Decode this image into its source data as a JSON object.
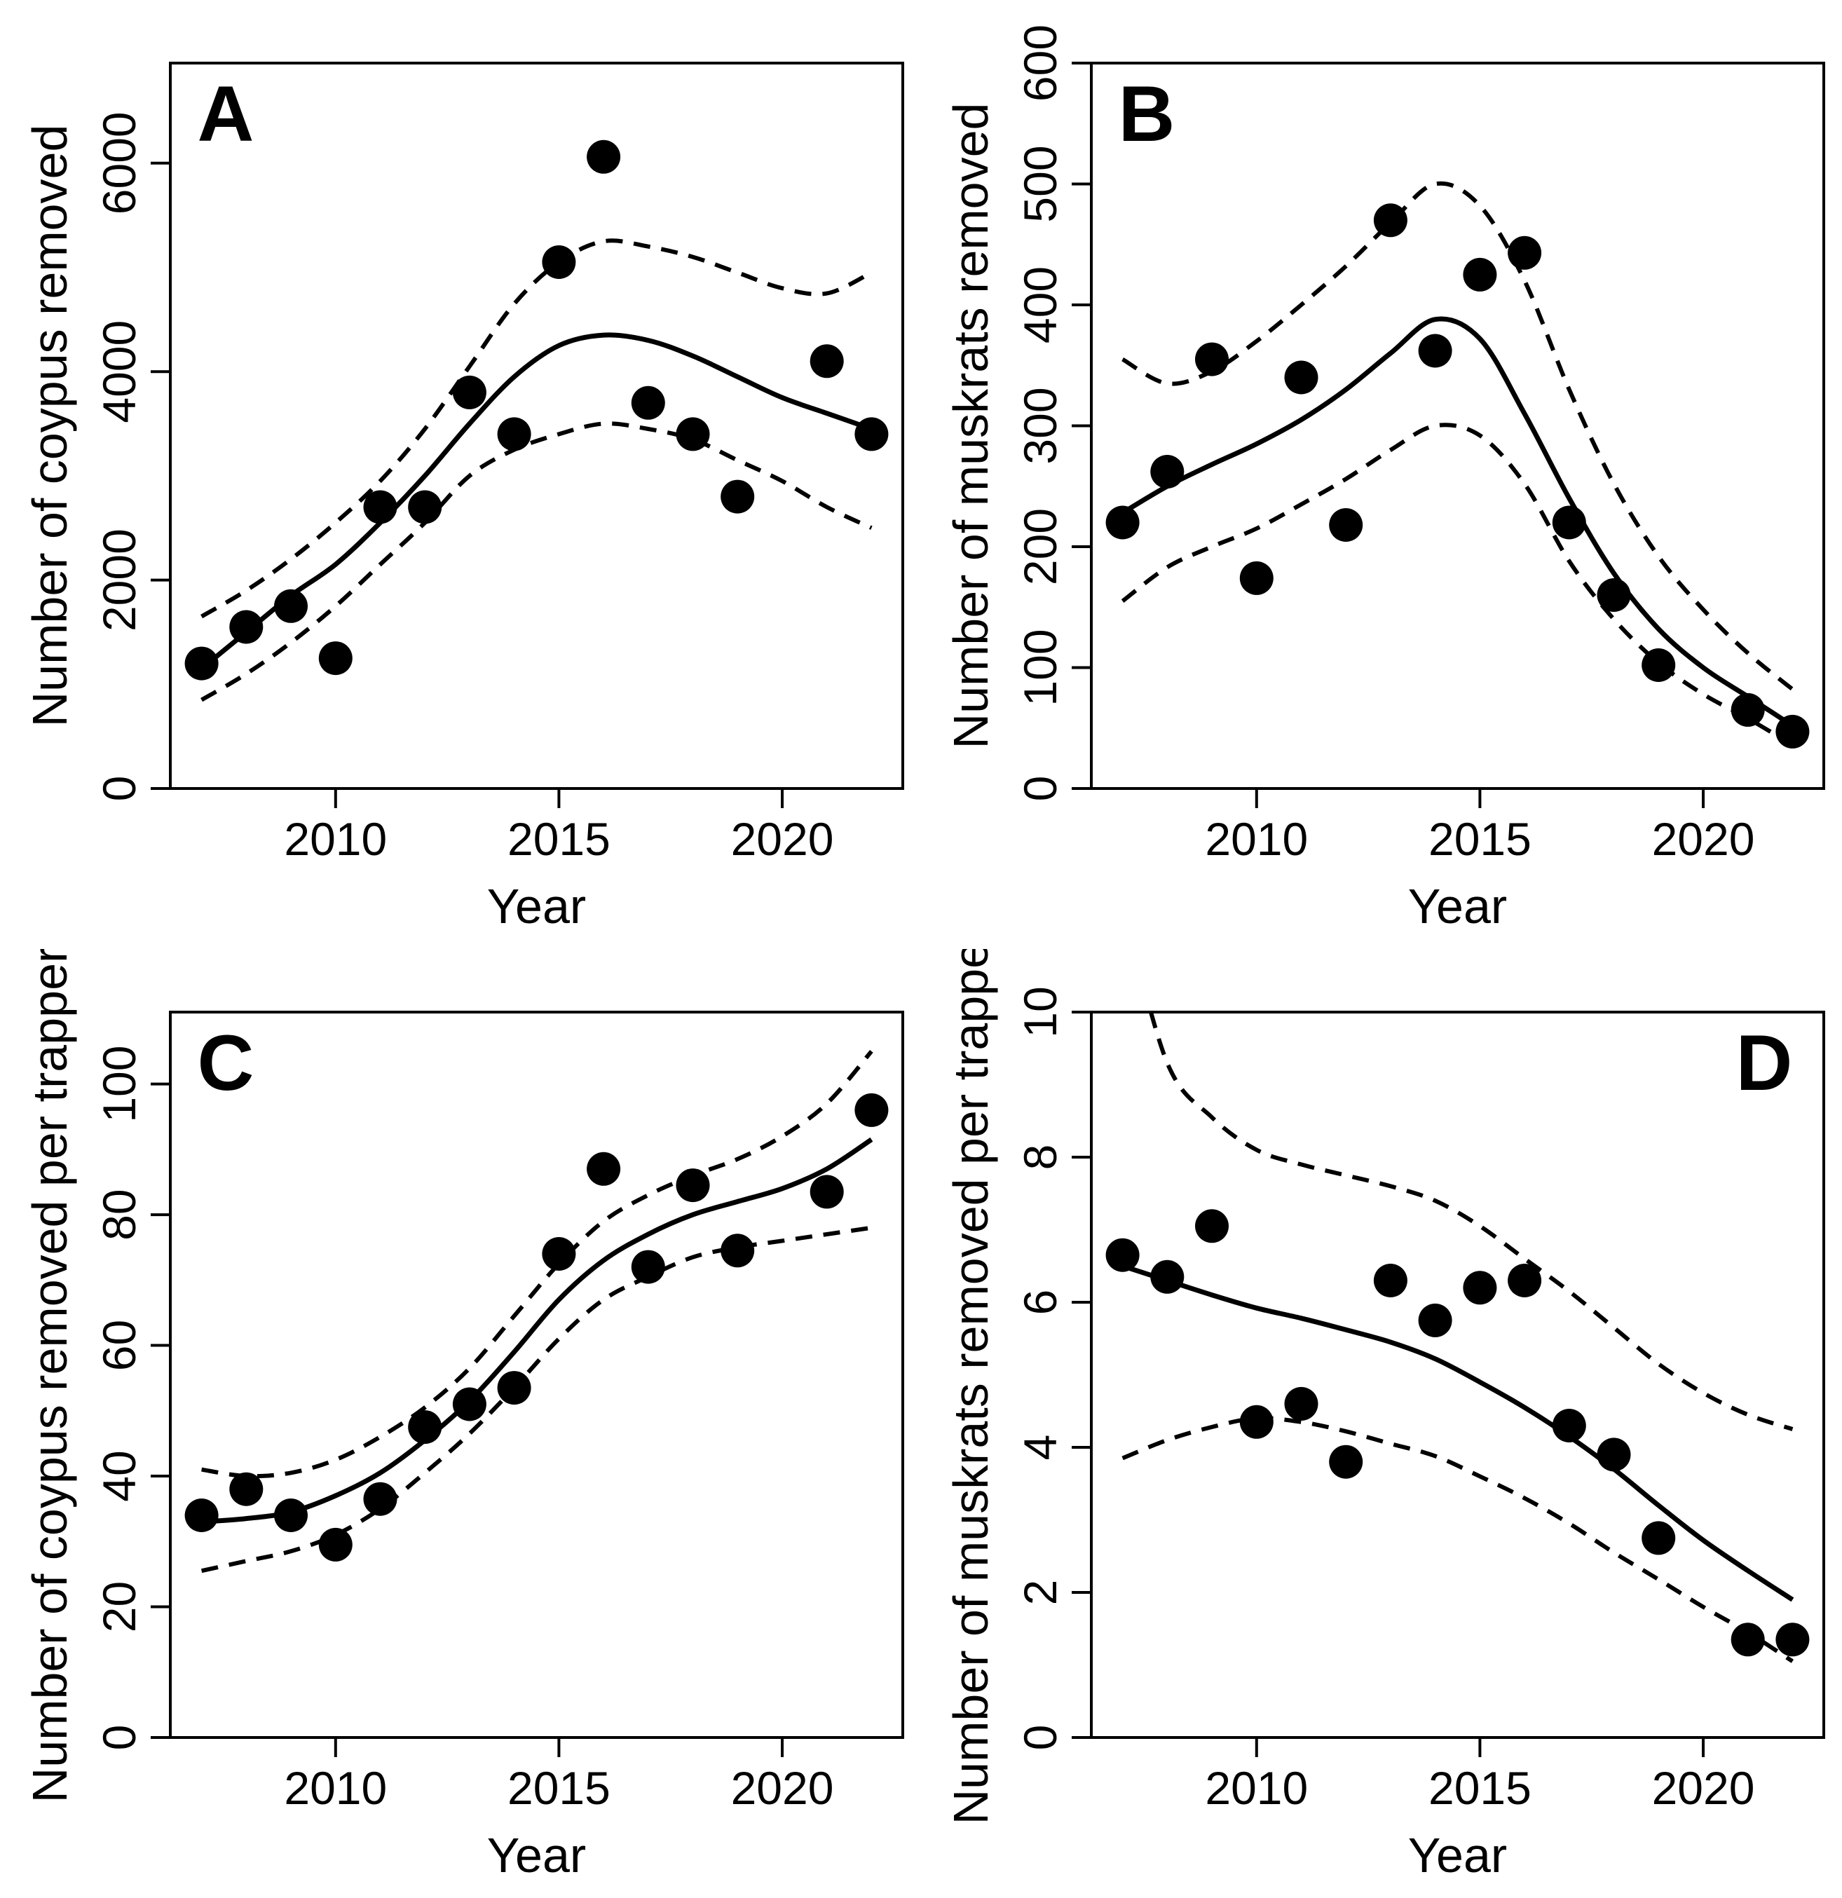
{
  "figure": {
    "background": "#ffffff",
    "foreground": "#000000",
    "panel_count": 4,
    "layout": "2x2",
    "point_years_note": "annual data 2007-2022, year 2020 missing",
    "xlabel": "Year"
  },
  "chart_data": [
    {
      "type": "scatter",
      "panel_label": "A",
      "label_corner": "top-left",
      "xlabel": "Year",
      "ylabel": "Number of coypus removed",
      "xlim": [
        2006.3,
        2022.7
      ],
      "ylim": [
        0,
        6960
      ],
      "xticks": [
        2010,
        2015,
        2020
      ],
      "yticks": [
        0,
        2000,
        4000,
        6000
      ],
      "grid": false,
      "legend": "none",
      "points": {
        "x": [
          2007,
          2008,
          2009,
          2010,
          2011,
          2012,
          2013,
          2014,
          2015,
          2016,
          2017,
          2018,
          2019,
          2021,
          2022
        ],
        "y": [
          1200,
          1550,
          1750,
          1250,
          2700,
          2700,
          3800,
          3400,
          5050,
          6060,
          3700,
          3400,
          2800,
          4100,
          3400
        ]
      },
      "fit_line": {
        "x": [
          2007,
          2008,
          2009,
          2010,
          2011,
          2012,
          2013,
          2014,
          2015,
          2016,
          2017,
          2018,
          2019,
          2020,
          2021,
          2022
        ],
        "y": [
          1150,
          1500,
          1850,
          2150,
          2550,
          3000,
          3500,
          3950,
          4250,
          4350,
          4300,
          4150,
          3950,
          3750,
          3600,
          3450
        ]
      },
      "ci_upper": {
        "x": [
          2007,
          2008,
          2009,
          2010,
          2011,
          2012,
          2013,
          2014,
          2015,
          2016,
          2017,
          2018,
          2019,
          2020,
          2021,
          2022
        ],
        "y": [
          1650,
          1900,
          2200,
          2550,
          2950,
          3450,
          4050,
          4650,
          5050,
          5250,
          5200,
          5100,
          4950,
          4800,
          4750,
          4950
        ]
      },
      "ci_lower": {
        "x": [
          2007,
          2008,
          2009,
          2010,
          2011,
          2012,
          2013,
          2014,
          2015,
          2016,
          2017,
          2018,
          2019,
          2020,
          2021,
          2022
        ],
        "y": [
          850,
          1100,
          1400,
          1750,
          2150,
          2550,
          3000,
          3250,
          3400,
          3500,
          3450,
          3350,
          3150,
          2950,
          2700,
          2500
        ]
      }
    },
    {
      "type": "scatter",
      "panel_label": "B",
      "label_corner": "top-left",
      "xlabel": "Year",
      "ylabel": "Number of muskrats removed",
      "xlim": [
        2006.3,
        2022.7
      ],
      "ylim": [
        0,
        600
      ],
      "xticks": [
        2010,
        2015,
        2020
      ],
      "yticks": [
        0,
        100,
        200,
        300,
        400,
        500,
        600
      ],
      "grid": false,
      "legend": "none",
      "points": {
        "x": [
          2007,
          2008,
          2009,
          2010,
          2011,
          2012,
          2013,
          2014,
          2015,
          2016,
          2017,
          2018,
          2019,
          2021,
          2022
        ],
        "y": [
          220,
          262,
          355,
          174,
          340,
          218,
          470,
          362,
          425,
          443,
          220,
          160,
          102,
          65,
          47
        ]
      },
      "fit_line": {
        "x": [
          2007,
          2008,
          2009,
          2010,
          2011,
          2012,
          2013,
          2014,
          2015,
          2016,
          2017,
          2018,
          2019,
          2020,
          2021,
          2022
        ],
        "y": [
          228,
          250,
          268,
          285,
          305,
          330,
          360,
          388,
          372,
          310,
          240,
          178,
          132,
          100,
          76,
          52
        ]
      },
      "ci_upper": {
        "x": [
          2007,
          2008,
          2009,
          2010,
          2011,
          2012,
          2013,
          2014,
          2015,
          2016,
          2017,
          2018,
          2019,
          2020,
          2021,
          2022
        ],
        "y": [
          355,
          335,
          345,
          370,
          400,
          432,
          468,
          500,
          482,
          420,
          330,
          252,
          192,
          148,
          112,
          82
        ]
      },
      "ci_lower": {
        "x": [
          2007,
          2008,
          2009,
          2010,
          2011,
          2012,
          2013,
          2014,
          2015,
          2016,
          2017,
          2018,
          2019,
          2020,
          2021,
          2022
        ],
        "y": [
          155,
          183,
          200,
          215,
          235,
          256,
          280,
          300,
          292,
          252,
          188,
          140,
          104,
          78,
          58,
          36
        ]
      }
    },
    {
      "type": "scatter",
      "panel_label": "C",
      "label_corner": "top-left",
      "xlabel": "Year",
      "ylabel": "Number of coypus removed per trapper",
      "xlim": [
        2006.3,
        2022.7
      ],
      "ylim": [
        0,
        111
      ],
      "xticks": [
        2010,
        2015,
        2020
      ],
      "yticks": [
        0,
        20,
        40,
        60,
        80,
        100
      ],
      "grid": false,
      "legend": "none",
      "points": {
        "x": [
          2007,
          2008,
          2009,
          2010,
          2011,
          2012,
          2013,
          2014,
          2015,
          2016,
          2017,
          2018,
          2019,
          2021,
          2022
        ],
        "y": [
          34,
          38,
          34,
          29.5,
          36.5,
          47.5,
          51,
          53.5,
          74,
          87,
          72,
          84.5,
          74.5,
          83.5,
          96
        ]
      },
      "fit_line": {
        "x": [
          2007,
          2008,
          2009,
          2010,
          2011,
          2012,
          2013,
          2014,
          2015,
          2016,
          2017,
          2018,
          2019,
          2020,
          2021,
          2022
        ],
        "y": [
          33,
          33.5,
          34.5,
          37,
          40.5,
          45.5,
          51.5,
          59,
          67,
          73,
          77,
          80,
          82,
          84,
          87,
          91.5
        ]
      },
      "ci_upper": {
        "x": [
          2007,
          2008,
          2009,
          2010,
          2011,
          2012,
          2013,
          2014,
          2015,
          2016,
          2017,
          2018,
          2019,
          2020,
          2021,
          2022
        ],
        "y": [
          41,
          40,
          40.5,
          42.5,
          46,
          50.5,
          56.5,
          64.5,
          72.5,
          79,
          83,
          86,
          88.5,
          92,
          97,
          105
        ]
      },
      "ci_lower": {
        "x": [
          2007,
          2008,
          2009,
          2010,
          2011,
          2012,
          2013,
          2014,
          2015,
          2016,
          2017,
          2018,
          2019,
          2020,
          2021,
          2022
        ],
        "y": [
          25.5,
          27,
          28.5,
          31,
          35,
          40.5,
          46.5,
          53.5,
          61,
          67,
          70.5,
          73.5,
          75,
          76,
          77,
          78
        ]
      }
    },
    {
      "type": "scatter",
      "panel_label": "D",
      "label_corner": "top-right",
      "xlabel": "Year",
      "ylabel": "Number of muskrats removed per trapper",
      "xlim": [
        2006.3,
        2022.7
      ],
      "ylim": [
        0,
        10
      ],
      "xticks": [
        2010,
        2015,
        2020
      ],
      "yticks": [
        0,
        2,
        4,
        6,
        8,
        10
      ],
      "grid": false,
      "legend": "none",
      "points": {
        "x": [
          2007,
          2008,
          2009,
          2010,
          2011,
          2012,
          2013,
          2014,
          2015,
          2016,
          2017,
          2018,
          2019,
          2021,
          2022
        ],
        "y": [
          6.65,
          6.35,
          7.05,
          4.35,
          4.6,
          3.8,
          6.3,
          5.75,
          6.2,
          6.3,
          4.3,
          3.9,
          2.75,
          1.35,
          1.35
        ]
      },
      "fit_line": {
        "x": [
          2007,
          2008,
          2009,
          2010,
          2011,
          2012,
          2013,
          2014,
          2015,
          2016,
          2017,
          2018,
          2019,
          2020,
          2021,
          2022
        ],
        "y": [
          6.5,
          6.3,
          6.1,
          5.92,
          5.78,
          5.62,
          5.45,
          5.22,
          4.9,
          4.55,
          4.15,
          3.7,
          3.2,
          2.72,
          2.3,
          1.9
        ]
      },
      "ci_upper": {
        "x": [
          2007,
          2008,
          2009,
          2010,
          2011,
          2012,
          2013,
          2014,
          2015,
          2016,
          2017,
          2018,
          2019,
          2020,
          2021,
          2022
        ],
        "y": [
          11.5,
          9.3,
          8.55,
          8.1,
          7.9,
          7.75,
          7.6,
          7.4,
          7.05,
          6.6,
          6.15,
          5.65,
          5.15,
          4.75,
          4.45,
          4.25
        ]
      },
      "ci_lower": {
        "x": [
          2007,
          2008,
          2009,
          2010,
          2011,
          2012,
          2013,
          2014,
          2015,
          2016,
          2017,
          2018,
          2019,
          2020,
          2021,
          2022
        ],
        "y": [
          3.85,
          4.1,
          4.28,
          4.4,
          4.35,
          4.22,
          4.05,
          3.88,
          3.6,
          3.3,
          2.95,
          2.55,
          2.18,
          1.8,
          1.45,
          1.05
        ]
      }
    }
  ]
}
